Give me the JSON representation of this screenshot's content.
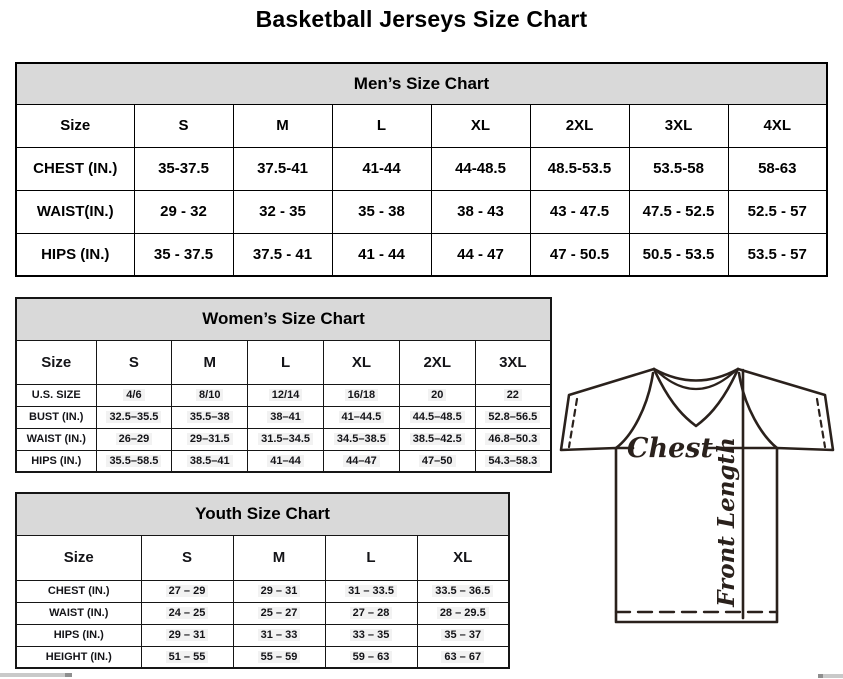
{
  "title": "Basketball Jerseys Size Chart",
  "mens": {
    "header": "Men’s Size Chart",
    "columns": [
      "Size",
      "S",
      "M",
      "L",
      "XL",
      "2XL",
      "3XL",
      "4XL"
    ],
    "rows": [
      {
        "label": "CHEST (IN.)",
        "values": [
          "35-37.5",
          "37.5-41",
          "41-44",
          "44-48.5",
          "48.5-53.5",
          "53.5-58",
          "58-63"
        ]
      },
      {
        "label": "WAIST(IN.)",
        "values": [
          "29 - 32",
          "32 - 35",
          "35 - 38",
          "38 - 43",
          "43 - 47.5",
          "47.5 - 52.5",
          "52.5 - 57"
        ]
      },
      {
        "label": "HIPS (IN.)",
        "values": [
          "35 - 37.5",
          "37.5 - 41",
          "41 - 44",
          "44 - 47",
          "47 - 50.5",
          "50.5 - 53.5",
          "53.5 - 57"
        ]
      }
    ]
  },
  "womens": {
    "header": "Women’s Size Chart",
    "columns": [
      "Size",
      "S",
      "M",
      "L",
      "XL",
      "2XL",
      "3XL"
    ],
    "rows": [
      {
        "label": "U.S. SIZE",
        "values": [
          "4/6",
          "8/10",
          "12/14",
          "16/18",
          "20",
          "22"
        ]
      },
      {
        "label": "BUST (IN.)",
        "values": [
          "32.5–35.5",
          "35.5–38",
          "38–41",
          "41–44.5",
          "44.5–48.5",
          "52.8–56.5"
        ]
      },
      {
        "label": "WAIST (IN.)",
        "values": [
          "26–29",
          "29–31.5",
          "31.5–34.5",
          "34.5–38.5",
          "38.5–42.5",
          "46.8–50.3"
        ]
      },
      {
        "label": "HIPS (IN.)",
        "values": [
          "35.5–58.5",
          "38.5–41",
          "41–44",
          "44–47",
          "47–50",
          "54.3–58.3"
        ]
      }
    ]
  },
  "youth": {
    "header": "Youth Size Chart",
    "columns": [
      "Size",
      "S",
      "M",
      "L",
      "XL"
    ],
    "rows": [
      {
        "label": "CHEST (IN.)",
        "values": [
          "27 – 29",
          "29 – 31",
          "31 – 33.5",
          "33.5 – 36.5"
        ]
      },
      {
        "label": "WAIST (IN.)",
        "values": [
          "24 – 25",
          "25 – 27",
          "27 – 28",
          "28 – 29.5"
        ]
      },
      {
        "label": "HIPS (IN.)",
        "values": [
          "29 – 31",
          "31 – 33",
          "33 – 35",
          "35 – 37"
        ]
      },
      {
        "label": "HEIGHT (IN.)",
        "values": [
          "51 – 55",
          "55 – 59",
          "59 – 63",
          "63 – 67"
        ]
      }
    ]
  },
  "diagram": {
    "chest_label": "Chest",
    "front_length_label": "Front Length"
  }
}
